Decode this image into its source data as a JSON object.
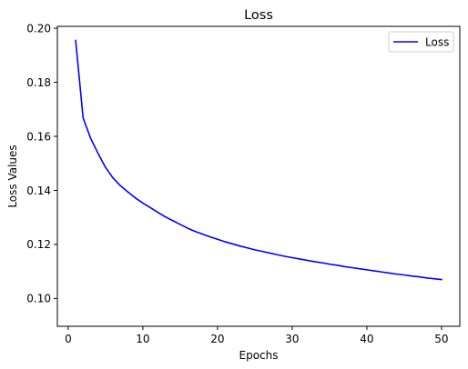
{
  "chart_data": {
    "type": "line",
    "title": "Loss",
    "xlabel": "Epochs",
    "ylabel": "Loss Values",
    "xlim": [
      -1.45,
      52.45
    ],
    "ylim": [
      0.0897,
      0.2007
    ],
    "xticks": [
      0,
      10,
      20,
      30,
      40,
      50
    ],
    "xtick_labels": [
      "0",
      "10",
      "20",
      "30",
      "40",
      "50"
    ],
    "yticks": [
      0.1,
      0.12,
      0.14,
      0.16,
      0.18,
      0.2
    ],
    "ytick_labels": [
      "0.10",
      "0.12",
      "0.14",
      "0.16",
      "0.18",
      "0.20"
    ],
    "grid": false,
    "legend_position": "top-right",
    "series": [
      {
        "name": "Loss",
        "color": "#0000ff",
        "x": [
          1,
          2,
          3,
          4,
          5,
          6,
          7,
          8,
          9,
          10,
          11,
          12,
          13,
          14,
          15,
          16,
          17,
          18,
          19,
          20,
          21,
          22,
          23,
          24,
          25,
          26,
          27,
          28,
          29,
          30,
          31,
          32,
          33,
          34,
          35,
          36,
          37,
          38,
          39,
          40,
          41,
          42,
          43,
          44,
          45,
          46,
          47,
          48,
          49,
          50
        ],
        "y": [
          0.1955,
          0.1668,
          0.1593,
          0.1537,
          0.1485,
          0.1446,
          0.1417,
          0.1394,
          0.1372,
          0.1353,
          0.1336,
          0.1319,
          0.1302,
          0.1288,
          0.1274,
          0.126,
          0.1248,
          0.1238,
          0.1228,
          0.1219,
          0.121,
          0.1202,
          0.1194,
          0.1187,
          0.118,
          0.1174,
          0.1168,
          0.1162,
          0.1156,
          0.1151,
          0.1146,
          0.1141,
          0.1136,
          0.1132,
          0.1127,
          0.1123,
          0.1118,
          0.1114,
          0.111,
          0.1106,
          0.1102,
          0.1098,
          0.1094,
          0.109,
          0.1087,
          0.1083,
          0.108,
          0.1076,
          0.1073,
          0.107
        ]
      }
    ]
  }
}
